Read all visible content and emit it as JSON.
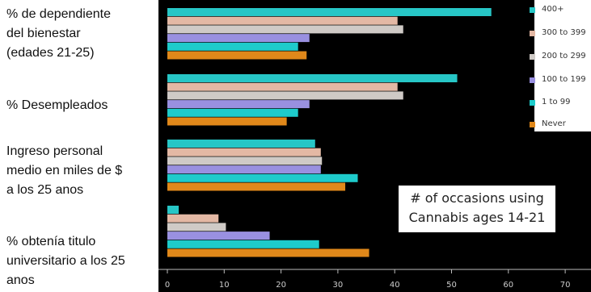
{
  "chart_data": {
    "type": "bar",
    "orientation": "horizontal",
    "categories": [
      "% de dependiente\ndel bienestar\n(edades 21-25)",
      "% Desempleados",
      "Ingreso personal\nmedio en miles de $\na los 25 anos",
      "% obtenía titulo\nuniversitario a los 25\nanos"
    ],
    "series": [
      {
        "name": "400+",
        "color": "#27c6c6",
        "values": [
          57,
          51,
          26,
          2
        ]
      },
      {
        "name": "300 to 399",
        "color": "#e3b8a4",
        "values": [
          40.5,
          40.5,
          27,
          9
        ]
      },
      {
        "name": "200 to 299",
        "color": "#cfcac6",
        "values": [
          41.5,
          41.5,
          27.2,
          10.3
        ]
      },
      {
        "name": "100 to 199",
        "color": "#9990e0",
        "values": [
          25,
          25,
          27,
          18
        ]
      },
      {
        "name": "1 to 99",
        "color": "#1ecbcb",
        "values": [
          23,
          23,
          33.5,
          26.7
        ]
      },
      {
        "name": "Never",
        "color": "#e0881a",
        "values": [
          24.5,
          21,
          31.3,
          35.5
        ]
      }
    ],
    "xlim": [
      0,
      72
    ],
    "xticks": [
      0,
      10,
      20,
      30,
      40,
      50,
      60,
      70
    ],
    "legend_position": "top-right",
    "annotation": "# of occasions using\nCannabis ages 14-21"
  }
}
